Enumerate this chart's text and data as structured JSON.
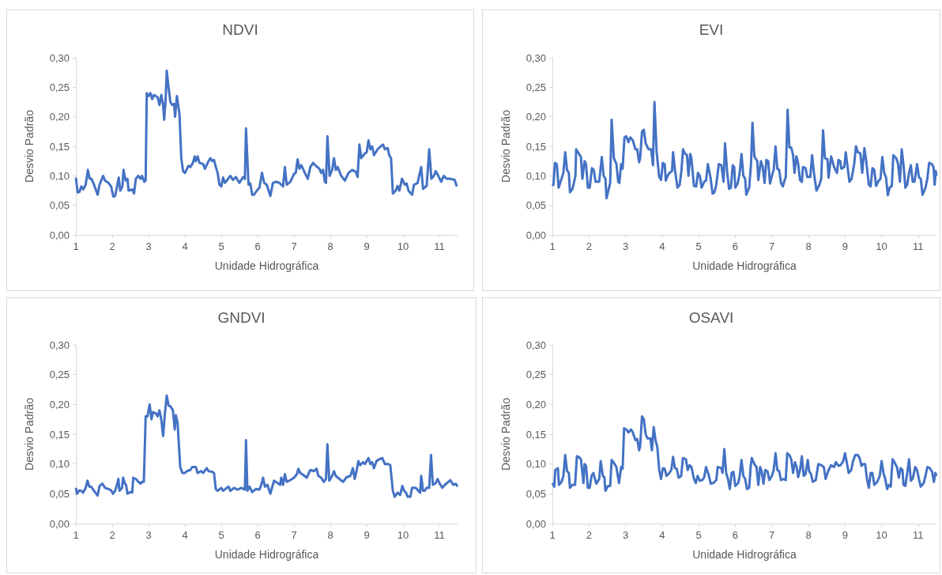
{
  "chart_data": [
    {
      "type": "line",
      "title": "NDVI",
      "xlabel": "Unidade Hidrográfica",
      "ylabel": "Desvio Padrão",
      "color": "#4472c4",
      "marker": "none",
      "xlim": [
        1,
        11.5
      ],
      "xticks": [
        1,
        2,
        3,
        4,
        5,
        6,
        7,
        8,
        9,
        10,
        11
      ],
      "ylim": [
        0,
        0.3
      ],
      "yticks": [
        {
          "value": 0,
          "label": "0,00"
        },
        {
          "value": 0.05,
          "label": "0,05"
        },
        {
          "value": 0.1,
          "label": "0,10"
        },
        {
          "value": 0.15,
          "label": "0,15"
        },
        {
          "value": 0.2,
          "label": "0,20"
        },
        {
          "value": 0.25,
          "label": "0,25"
        },
        {
          "value": 0.3,
          "label": "0,30"
        }
      ],
      "x": [
        1.0,
        1.05,
        1.1,
        1.15,
        1.2,
        1.27,
        1.33,
        1.38,
        1.43,
        1.5,
        1.6,
        1.65,
        1.75,
        1.8,
        1.9,
        1.97,
        2.03,
        2.08,
        2.18,
        2.22,
        2.28,
        2.31,
        2.37,
        2.42,
        2.45,
        2.55,
        2.6,
        2.65,
        2.72,
        2.78,
        2.82,
        2.88,
        2.92,
        2.95,
        3.0,
        3.05,
        3.1,
        3.15,
        3.25,
        3.3,
        3.35,
        3.4,
        3.43,
        3.47,
        3.5,
        3.55,
        3.6,
        3.65,
        3.7,
        3.73,
        3.78,
        3.85,
        3.9,
        3.95,
        4.0,
        4.1,
        4.15,
        4.22,
        4.27,
        4.3,
        4.35,
        4.4,
        4.5,
        4.55,
        4.65,
        4.7,
        4.75,
        4.8,
        4.85,
        4.9,
        4.95,
        5.0,
        5.05,
        5.1,
        5.15,
        5.25,
        5.32,
        5.4,
        5.5,
        5.6,
        5.65,
        5.68,
        5.75,
        5.8,
        5.85,
        5.9,
        5.98,
        6.05,
        6.12,
        6.18,
        6.25,
        6.35,
        6.42,
        6.5,
        6.6,
        6.7,
        6.75,
        6.8,
        6.9,
        7.0,
        7.05,
        7.1,
        7.15,
        7.2,
        7.3,
        7.38,
        7.45,
        7.53,
        7.6,
        7.7,
        7.75,
        7.8,
        7.85,
        7.88,
        7.92,
        7.98,
        8.05,
        8.1,
        8.15,
        8.2,
        8.3,
        8.4,
        8.5,
        8.6,
        8.7,
        8.75,
        8.8,
        8.85,
        8.95,
        9.0,
        9.05,
        9.1,
        9.15,
        9.2,
        9.3,
        9.35,
        9.45,
        9.5,
        9.58,
        9.62,
        9.67,
        9.72,
        9.8,
        9.85,
        9.9,
        9.97,
        10.05,
        10.1,
        10.15,
        10.25,
        10.3,
        10.4,
        10.5,
        10.55,
        10.65,
        10.72,
        10.78,
        10.85,
        10.9,
        10.97,
        11.05,
        11.12,
        11.2,
        11.3,
        11.42,
        11.48
      ],
      "values": [
        0.097,
        0.072,
        0.073,
        0.082,
        0.077,
        0.085,
        0.11,
        0.095,
        0.095,
        0.085,
        0.068,
        0.085,
        0.1,
        0.092,
        0.088,
        0.082,
        0.065,
        0.066,
        0.097,
        0.075,
        0.082,
        0.11,
        0.092,
        0.095,
        0.075,
        0.077,
        0.07,
        0.095,
        0.1,
        0.095,
        0.1,
        0.09,
        0.092,
        0.24,
        0.235,
        0.24,
        0.23,
        0.237,
        0.233,
        0.22,
        0.237,
        0.22,
        0.195,
        0.23,
        0.278,
        0.25,
        0.225,
        0.22,
        0.222,
        0.2,
        0.235,
        0.205,
        0.13,
        0.108,
        0.105,
        0.117,
        0.115,
        0.122,
        0.133,
        0.125,
        0.133,
        0.122,
        0.12,
        0.112,
        0.125,
        0.13,
        0.125,
        0.127,
        0.115,
        0.105,
        0.085,
        0.082,
        0.097,
        0.088,
        0.092,
        0.1,
        0.093,
        0.098,
        0.088,
        0.098,
        0.095,
        0.18,
        0.085,
        0.087,
        0.068,
        0.068,
        0.075,
        0.08,
        0.105,
        0.088,
        0.085,
        0.066,
        0.088,
        0.09,
        0.088,
        0.082,
        0.115,
        0.085,
        0.09,
        0.103,
        0.105,
        0.128,
        0.112,
        0.118,
        0.105,
        0.095,
        0.115,
        0.122,
        0.117,
        0.112,
        0.105,
        0.11,
        0.09,
        0.088,
        0.167,
        0.1,
        0.11,
        0.13,
        0.11,
        0.115,
        0.1,
        0.092,
        0.105,
        0.11,
        0.107,
        0.098,
        0.153,
        0.13,
        0.138,
        0.14,
        0.16,
        0.145,
        0.15,
        0.135,
        0.145,
        0.148,
        0.153,
        0.145,
        0.147,
        0.135,
        0.13,
        0.07,
        0.075,
        0.083,
        0.075,
        0.095,
        0.085,
        0.087,
        0.075,
        0.068,
        0.085,
        0.088,
        0.115,
        0.078,
        0.083,
        0.145,
        0.095,
        0.1,
        0.108,
        0.1,
        0.09,
        0.1,
        0.095,
        0.095,
        0.093,
        0.082
      ]
    },
    {
      "type": "line",
      "title": "EVI",
      "xlabel": "Unidade Hidrográfica",
      "ylabel": "Desvio Padrão",
      "color": "#4472c4",
      "marker": "none",
      "xlim": [
        1,
        11.5
      ],
      "xticks": [
        1,
        2,
        3,
        4,
        5,
        6,
        7,
        8,
        9,
        10,
        11
      ],
      "ylim": [
        0,
        0.3
      ],
      "yticks": [
        {
          "value": 0,
          "label": "0,00"
        },
        {
          "value": 0.05,
          "label": "0,05"
        },
        {
          "value": 0.1,
          "label": "0,10"
        },
        {
          "value": 0.15,
          "label": "0,15"
        },
        {
          "value": 0.2,
          "label": "0,20"
        },
        {
          "value": 0.25,
          "label": "0,25"
        },
        {
          "value": 0.3,
          "label": "0,30"
        }
      ],
      "x": [
        1.0,
        1.03,
        1.07,
        1.12,
        1.17,
        1.25,
        1.3,
        1.35,
        1.4,
        1.45,
        1.48,
        1.55,
        1.63,
        1.65,
        1.72,
        1.78,
        1.82,
        1.88,
        1.92,
        1.97,
        2.02,
        2.08,
        2.13,
        2.18,
        2.28,
        2.35,
        2.4,
        2.45,
        2.48,
        2.58,
        2.62,
        2.68,
        2.75,
        2.8,
        2.83,
        2.88,
        2.92,
        2.97,
        3.02,
        3.08,
        3.13,
        3.2,
        3.27,
        3.32,
        3.37,
        3.4,
        3.45,
        3.5,
        3.55,
        3.63,
        3.7,
        3.75,
        3.79,
        3.85,
        3.92,
        3.97,
        4.02,
        4.07,
        4.1,
        4.15,
        4.2,
        4.27,
        4.3,
        4.35,
        4.42,
        4.48,
        4.53,
        4.57,
        4.62,
        4.68,
        4.72,
        4.77,
        4.8,
        4.87,
        4.93,
        4.98,
        5.03,
        5.08,
        5.15,
        5.2,
        5.25,
        5.32,
        5.38,
        5.43,
        5.48,
        5.55,
        5.62,
        5.68,
        5.72,
        5.78,
        5.83,
        5.88,
        5.93,
        5.97,
        6.0,
        6.07,
        6.12,
        6.17,
        6.22,
        6.27,
        6.3,
        6.38,
        6.43,
        6.47,
        6.52,
        6.6,
        6.63,
        6.7,
        6.75,
        6.8,
        6.85,
        6.9,
        6.95,
        7.0,
        7.05,
        7.1,
        7.15,
        7.2,
        7.25,
        7.3,
        7.35,
        7.38,
        7.43,
        7.48,
        7.53,
        7.58,
        7.62,
        7.67,
        7.72,
        7.77,
        7.82,
        7.85,
        7.92,
        7.97,
        8.05,
        8.1,
        8.15,
        8.22,
        8.3,
        8.35,
        8.4,
        8.45,
        8.52,
        8.55,
        8.62,
        8.7,
        8.78,
        8.82,
        8.87,
        8.9,
        8.98,
        9.02,
        9.07,
        9.12,
        9.18,
        9.25,
        9.3,
        9.35,
        9.42,
        9.47,
        9.53,
        9.58,
        9.65,
        9.7,
        9.75,
        9.8,
        9.85,
        9.92,
        9.97,
        10.02,
        10.07,
        10.12,
        10.17,
        10.22,
        10.28,
        10.32,
        10.4,
        10.45,
        10.5,
        10.55,
        10.6,
        10.65,
        10.7,
        10.75,
        10.8,
        10.85,
        10.9,
        10.97,
        11.02,
        11.07,
        11.12,
        11.2,
        11.25,
        11.3,
        11.37,
        11.42,
        11.45,
        11.48,
        11.5
      ],
      "values": [
        0.083,
        0.085,
        0.122,
        0.12,
        0.08,
        0.095,
        0.105,
        0.14,
        0.11,
        0.105,
        0.072,
        0.078,
        0.1,
        0.145,
        0.138,
        0.132,
        0.095,
        0.125,
        0.12,
        0.08,
        0.08,
        0.113,
        0.11,
        0.09,
        0.09,
        0.132,
        0.1,
        0.095,
        0.062,
        0.088,
        0.195,
        0.13,
        0.12,
        0.09,
        0.088,
        0.12,
        0.112,
        0.165,
        0.167,
        0.157,
        0.165,
        0.16,
        0.145,
        0.145,
        0.123,
        0.13,
        0.175,
        0.178,
        0.155,
        0.145,
        0.145,
        0.118,
        0.225,
        0.14,
        0.098,
        0.093,
        0.122,
        0.12,
        0.092,
        0.1,
        0.105,
        0.108,
        0.14,
        0.11,
        0.08,
        0.085,
        0.11,
        0.145,
        0.138,
        0.135,
        0.1,
        0.137,
        0.13,
        0.083,
        0.082,
        0.105,
        0.1,
        0.08,
        0.09,
        0.092,
        0.12,
        0.098,
        0.07,
        0.072,
        0.085,
        0.12,
        0.118,
        0.09,
        0.155,
        0.105,
        0.078,
        0.08,
        0.118,
        0.115,
        0.08,
        0.088,
        0.105,
        0.137,
        0.1,
        0.095,
        0.068,
        0.08,
        0.12,
        0.19,
        0.133,
        0.125,
        0.093,
        0.125,
        0.115,
        0.088,
        0.127,
        0.125,
        0.087,
        0.1,
        0.11,
        0.15,
        0.112,
        0.11,
        0.088,
        0.082,
        0.093,
        0.098,
        0.212,
        0.148,
        0.148,
        0.135,
        0.105,
        0.133,
        0.12,
        0.093,
        0.09,
        0.115,
        0.113,
        0.098,
        0.098,
        0.135,
        0.105,
        0.075,
        0.085,
        0.095,
        0.177,
        0.13,
        0.128,
        0.097,
        0.133,
        0.115,
        0.105,
        0.127,
        0.125,
        0.112,
        0.115,
        0.14,
        0.115,
        0.09,
        0.095,
        0.12,
        0.15,
        0.14,
        0.138,
        0.105,
        0.147,
        0.125,
        0.085,
        0.082,
        0.113,
        0.11,
        0.083,
        0.092,
        0.095,
        0.132,
        0.105,
        0.098,
        0.067,
        0.08,
        0.083,
        0.135,
        0.13,
        0.12,
        0.09,
        0.145,
        0.118,
        0.08,
        0.085,
        0.105,
        0.118,
        0.09,
        0.09,
        0.12,
        0.098,
        0.095,
        0.068,
        0.08,
        0.095,
        0.122,
        0.12,
        0.115,
        0.085,
        0.108,
        0.1
      ]
    },
    {
      "type": "line",
      "title": "GNDVI",
      "xlabel": "Unidade Hidrográfica",
      "ylabel": "Desvio Padrão",
      "color": "#4472c4",
      "marker": "none",
      "xlim": [
        1,
        11.5
      ],
      "xticks": [
        1,
        2,
        3,
        4,
        5,
        6,
        7,
        8,
        9,
        10,
        11
      ],
      "ylim": [
        0,
        0.3
      ],
      "yticks": [
        {
          "value": 0,
          "label": "0,00"
        },
        {
          "value": 0.05,
          "label": "0,05"
        },
        {
          "value": 0.1,
          "label": "0,10"
        },
        {
          "value": 0.15,
          "label": "0,15"
        },
        {
          "value": 0.2,
          "label": "0,20"
        },
        {
          "value": 0.25,
          "label": "0,25"
        },
        {
          "value": 0.3,
          "label": "0,30"
        }
      ],
      "x": [
        1.0,
        1.03,
        1.1,
        1.15,
        1.2,
        1.27,
        1.32,
        1.37,
        1.42,
        1.5,
        1.6,
        1.65,
        1.73,
        1.8,
        1.9,
        1.98,
        2.02,
        2.08,
        2.13,
        2.17,
        2.2,
        2.27,
        2.3,
        2.35,
        2.38,
        2.42,
        2.5,
        2.55,
        2.58,
        2.65,
        2.72,
        2.78,
        2.82,
        2.87,
        2.92,
        2.97,
        3.03,
        3.08,
        3.12,
        3.2,
        3.25,
        3.3,
        3.35,
        3.4,
        3.45,
        3.5,
        3.55,
        3.6,
        3.67,
        3.72,
        3.75,
        3.8,
        3.87,
        3.93,
        4.0,
        4.05,
        4.15,
        4.2,
        4.3,
        4.35,
        4.45,
        4.5,
        4.6,
        4.65,
        4.75,
        4.8,
        4.85,
        4.9,
        5.0,
        5.05,
        5.15,
        5.2,
        5.25,
        5.35,
        5.45,
        5.55,
        5.65,
        5.68,
        5.72,
        5.78,
        5.85,
        5.95,
        6.05,
        6.1,
        6.15,
        6.2,
        6.27,
        6.35,
        6.45,
        6.55,
        6.62,
        6.65,
        6.7,
        6.75,
        6.8,
        6.9,
        7.0,
        7.08,
        7.12,
        7.17,
        7.25,
        7.35,
        7.45,
        7.55,
        7.62,
        7.67,
        7.75,
        7.82,
        7.88,
        7.92,
        7.97,
        8.05,
        8.1,
        8.15,
        8.25,
        8.35,
        8.45,
        8.55,
        8.62,
        8.67,
        8.72,
        8.77,
        8.82,
        8.9,
        8.95,
        9.05,
        9.1,
        9.15,
        9.2,
        9.27,
        9.35,
        9.43,
        9.5,
        9.6,
        9.65,
        9.72,
        9.77,
        9.85,
        9.92,
        9.98,
        10.03,
        10.08,
        10.13,
        10.2,
        10.25,
        10.35,
        10.42,
        10.47,
        10.5,
        10.55,
        10.6,
        10.65,
        10.72,
        10.77,
        10.82,
        10.9,
        10.95,
        11.0,
        11.08,
        11.15,
        11.25,
        11.3,
        11.38,
        11.45,
        11.5
      ],
      "values": [
        0.06,
        0.05,
        0.056,
        0.055,
        0.052,
        0.06,
        0.072,
        0.062,
        0.062,
        0.055,
        0.047,
        0.063,
        0.067,
        0.06,
        0.058,
        0.055,
        0.05,
        0.055,
        0.065,
        0.075,
        0.055,
        0.06,
        0.077,
        0.067,
        0.065,
        0.05,
        0.053,
        0.052,
        0.077,
        0.075,
        0.07,
        0.067,
        0.07,
        0.07,
        0.18,
        0.18,
        0.2,
        0.175,
        0.187,
        0.185,
        0.18,
        0.19,
        0.175,
        0.147,
        0.185,
        0.215,
        0.198,
        0.197,
        0.19,
        0.158,
        0.182,
        0.168,
        0.095,
        0.085,
        0.085,
        0.088,
        0.09,
        0.095,
        0.095,
        0.085,
        0.088,
        0.085,
        0.093,
        0.088,
        0.087,
        0.085,
        0.058,
        0.055,
        0.06,
        0.055,
        0.06,
        0.062,
        0.055,
        0.06,
        0.057,
        0.06,
        0.057,
        0.14,
        0.055,
        0.062,
        0.053,
        0.058,
        0.057,
        0.065,
        0.077,
        0.062,
        0.065,
        0.05,
        0.072,
        0.068,
        0.065,
        0.077,
        0.065,
        0.083,
        0.07,
        0.073,
        0.077,
        0.083,
        0.092,
        0.085,
        0.082,
        0.077,
        0.09,
        0.088,
        0.092,
        0.08,
        0.077,
        0.07,
        0.075,
        0.133,
        0.072,
        0.08,
        0.088,
        0.08,
        0.075,
        0.07,
        0.078,
        0.08,
        0.093,
        0.075,
        0.088,
        0.105,
        0.098,
        0.103,
        0.1,
        0.11,
        0.1,
        0.103,
        0.093,
        0.105,
        0.108,
        0.11,
        0.1,
        0.1,
        0.098,
        0.055,
        0.045,
        0.052,
        0.048,
        0.063,
        0.055,
        0.052,
        0.045,
        0.045,
        0.06,
        0.06,
        0.055,
        0.052,
        0.08,
        0.055,
        0.055,
        0.06,
        0.06,
        0.115,
        0.065,
        0.068,
        0.075,
        0.068,
        0.06,
        0.065,
        0.07,
        0.073,
        0.065,
        0.067,
        0.062
      ]
    },
    {
      "type": "line",
      "title": "OSAVI",
      "xlabel": "Unidade Hidrográfica",
      "ylabel": "Desvio Padrão",
      "color": "#4472c4",
      "marker": "none",
      "xlim": [
        1,
        11.5
      ],
      "xticks": [
        1,
        2,
        3,
        4,
        5,
        6,
        7,
        8,
        9,
        10,
        11
      ],
      "ylim": [
        0,
        0.3
      ],
      "yticks": [
        {
          "value": 0,
          "label": "0,00"
        },
        {
          "value": 0.05,
          "label": "0,05"
        },
        {
          "value": 0.1,
          "label": "0,10"
        },
        {
          "value": 0.15,
          "label": "0,15"
        },
        {
          "value": 0.2,
          "label": "0,20"
        },
        {
          "value": 0.25,
          "label": "0,25"
        },
        {
          "value": 0.3,
          "label": "0,30"
        }
      ],
      "x": [
        1.0,
        1.05,
        1.08,
        1.15,
        1.18,
        1.25,
        1.3,
        1.35,
        1.4,
        1.45,
        1.48,
        1.55,
        1.62,
        1.67,
        1.72,
        1.78,
        1.85,
        1.88,
        1.92,
        1.97,
        2.02,
        2.07,
        2.12,
        2.2,
        2.28,
        2.32,
        2.38,
        2.42,
        2.45,
        2.52,
        2.58,
        2.62,
        2.7,
        2.75,
        2.82,
        2.88,
        2.92,
        2.96,
        3.02,
        3.08,
        3.15,
        3.2,
        3.27,
        3.32,
        3.37,
        3.4,
        3.45,
        3.5,
        3.55,
        3.6,
        3.68,
        3.72,
        3.77,
        3.82,
        3.87,
        3.92,
        3.97,
        4.02,
        4.07,
        4.12,
        4.2,
        4.25,
        4.3,
        4.35,
        4.4,
        4.45,
        4.52,
        4.57,
        4.65,
        4.7,
        4.75,
        4.8,
        4.87,
        4.92,
        4.97,
        5.03,
        5.1,
        5.15,
        5.2,
        5.27,
        5.33,
        5.4,
        5.48,
        5.52,
        5.62,
        5.65,
        5.7,
        5.75,
        5.8,
        5.85,
        5.9,
        5.95,
        6.0,
        6.08,
        6.12,
        6.17,
        6.22,
        6.27,
        6.32,
        6.38,
        6.42,
        6.45,
        6.52,
        6.58,
        6.63,
        6.68,
        6.72,
        6.77,
        6.82,
        6.88,
        6.93,
        7.0,
        7.05,
        7.1,
        7.15,
        7.2,
        7.25,
        7.32,
        7.38,
        7.42,
        7.48,
        7.53,
        7.58,
        7.63,
        7.68,
        7.72,
        7.77,
        7.82,
        7.87,
        7.92,
        7.98,
        8.02,
        8.07,
        8.12,
        8.2,
        8.27,
        8.35,
        8.42,
        8.47,
        8.55,
        8.62,
        8.7,
        8.75,
        8.82,
        8.88,
        8.95,
        9.0,
        9.05,
        9.1,
        9.17,
        9.22,
        9.28,
        9.35,
        9.4,
        9.45,
        9.5,
        9.55,
        9.6,
        9.65,
        9.7,
        9.75,
        9.8,
        9.88,
        9.95,
        10.0,
        10.05,
        10.1,
        10.15,
        10.2,
        10.25,
        10.3,
        10.35,
        10.42,
        10.47,
        10.52,
        10.57,
        10.6,
        10.65,
        10.7,
        10.75,
        10.8,
        10.85,
        10.92,
        10.97,
        11.02,
        11.07,
        11.15,
        11.2,
        11.25,
        11.32,
        11.38,
        11.43,
        11.47,
        11.5
      ],
      "values": [
        0.068,
        0.062,
        0.09,
        0.093,
        0.065,
        0.07,
        0.08,
        0.115,
        0.088,
        0.085,
        0.06,
        0.065,
        0.065,
        0.113,
        0.112,
        0.108,
        0.068,
        0.1,
        0.097,
        0.06,
        0.06,
        0.08,
        0.085,
        0.067,
        0.075,
        0.105,
        0.08,
        0.078,
        0.055,
        0.063,
        0.063,
        0.107,
        0.1,
        0.095,
        0.068,
        0.095,
        0.092,
        0.16,
        0.158,
        0.153,
        0.158,
        0.153,
        0.14,
        0.142,
        0.123,
        0.13,
        0.18,
        0.175,
        0.15,
        0.143,
        0.143,
        0.123,
        0.162,
        0.14,
        0.128,
        0.09,
        0.075,
        0.093,
        0.092,
        0.08,
        0.085,
        0.09,
        0.112,
        0.093,
        0.092,
        0.077,
        0.08,
        0.11,
        0.108,
        0.09,
        0.098,
        0.095,
        0.075,
        0.068,
        0.08,
        0.072,
        0.073,
        0.078,
        0.095,
        0.082,
        0.067,
        0.068,
        0.073,
        0.095,
        0.093,
        0.085,
        0.125,
        0.085,
        0.075,
        0.058,
        0.085,
        0.087,
        0.063,
        0.068,
        0.08,
        0.107,
        0.08,
        0.075,
        0.058,
        0.06,
        0.095,
        0.11,
        0.1,
        0.095,
        0.065,
        0.095,
        0.088,
        0.067,
        0.09,
        0.088,
        0.073,
        0.08,
        0.09,
        0.118,
        0.09,
        0.088,
        0.073,
        0.075,
        0.073,
        0.118,
        0.115,
        0.108,
        0.085,
        0.103,
        0.095,
        0.078,
        0.09,
        0.113,
        0.08,
        0.083,
        0.107,
        0.088,
        0.083,
        0.07,
        0.073,
        0.1,
        0.098,
        0.095,
        0.075,
        0.09,
        0.098,
        0.095,
        0.103,
        0.097,
        0.098,
        0.105,
        0.118,
        0.102,
        0.085,
        0.09,
        0.105,
        0.115,
        0.115,
        0.11,
        0.097,
        0.1,
        0.1,
        0.075,
        0.06,
        0.085,
        0.085,
        0.065,
        0.07,
        0.08,
        0.105,
        0.085,
        0.075,
        0.058,
        0.065,
        0.062,
        0.108,
        0.103,
        0.095,
        0.077,
        0.093,
        0.09,
        0.065,
        0.063,
        0.085,
        0.108,
        0.072,
        0.075,
        0.095,
        0.09,
        0.075,
        0.062,
        0.068,
        0.08,
        0.095,
        0.093,
        0.087,
        0.07,
        0.085,
        0.08
      ]
    }
  ]
}
